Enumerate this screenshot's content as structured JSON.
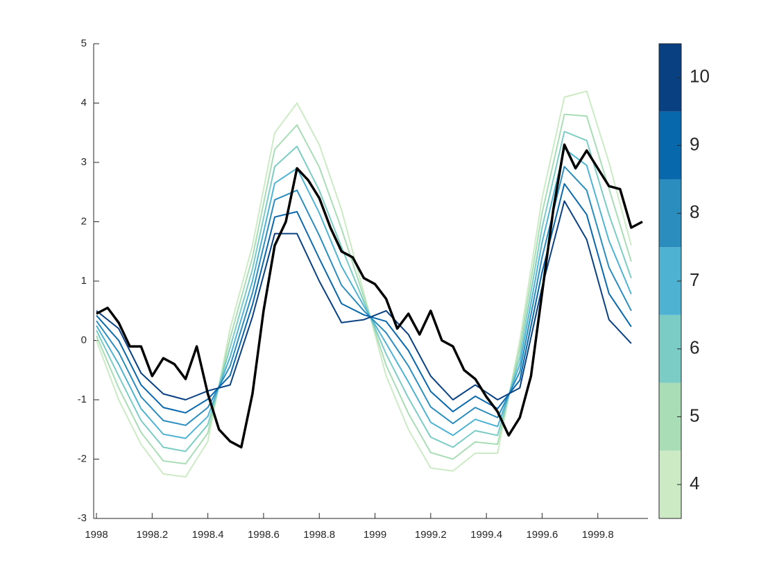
{
  "chart_data": {
    "type": "line",
    "xlim": [
      1997.99,
      1999.98
    ],
    "ylim": [
      -3,
      5
    ],
    "xticks": [
      1998,
      1998.2,
      1998.4,
      1998.6,
      1998.8,
      1999,
      1999.2,
      1999.4,
      1999.6,
      1999.8
    ],
    "yticks": [
      -3,
      -2,
      -1,
      0,
      1,
      2,
      3,
      4,
      5
    ],
    "series": [
      {
        "color": "#ccebc5",
        "x": [
          1998.0,
          1998.08,
          1998.16,
          1998.24,
          1998.32,
          1998.4,
          1998.48,
          1998.56,
          1998.64,
          1998.72,
          1998.8,
          1998.88,
          1998.96,
          1999.04,
          1999.12,
          1999.2,
          1999.28,
          1999.36,
          1999.44,
          1999.52,
          1999.6,
          1999.68,
          1999.76,
          1999.84,
          1999.92
        ],
        "values": [
          0,
          -1.0,
          -1.75,
          -2.25,
          -2.3,
          -1.7,
          0.2,
          1.6,
          3.5,
          4.0,
          3.3,
          2.2,
          0.8,
          -0.6,
          -1.5,
          -2.15,
          -2.2,
          -1.9,
          -1.9,
          0,
          2.4,
          4.1,
          4.2,
          3.0,
          1.6
        ]
      },
      {
        "color": "#a8ddb5",
        "x": [
          1998.0,
          1998.08,
          1998.16,
          1998.24,
          1998.32,
          1998.4,
          1998.48,
          1998.56,
          1998.64,
          1998.72,
          1998.8,
          1998.88,
          1998.96,
          1999.04,
          1999.12,
          1999.2,
          1999.28,
          1999.36,
          1999.44,
          1999.52,
          1999.6,
          1999.68,
          1999.76,
          1999.84,
          1999.92
        ],
        "values": [
          0.08,
          -0.8,
          -1.55,
          -2.03,
          -2.08,
          -1.56,
          0.04,
          1.4,
          3.22,
          3.63,
          2.92,
          1.88,
          0.73,
          -0.42,
          -1.23,
          -1.89,
          -2.0,
          -1.71,
          -1.75,
          -0.13,
          2.15,
          3.81,
          3.78,
          2.56,
          1.33
        ]
      },
      {
        "color": "#7bccc4",
        "x": [
          1998.0,
          1998.08,
          1998.16,
          1998.24,
          1998.32,
          1998.4,
          1998.48,
          1998.56,
          1998.64,
          1998.72,
          1998.8,
          1998.88,
          1998.96,
          1999.04,
          1999.12,
          1999.2,
          1999.28,
          1999.36,
          1999.44,
          1999.52,
          1999.6,
          1999.68,
          1999.76,
          1999.84,
          1999.92
        ],
        "values": [
          0.17,
          -0.6,
          -1.35,
          -1.8,
          -1.87,
          -1.42,
          -0.12,
          1.2,
          2.93,
          3.27,
          2.53,
          1.57,
          0.65,
          -0.23,
          -0.97,
          -1.63,
          -1.8,
          -1.52,
          -1.6,
          -0.27,
          1.9,
          3.52,
          3.37,
          2.12,
          1.05
        ]
      },
      {
        "color": "#4eb3d3",
        "x": [
          1998.0,
          1998.08,
          1998.16,
          1998.24,
          1998.32,
          1998.4,
          1998.48,
          1998.56,
          1998.64,
          1998.72,
          1998.8,
          1998.88,
          1998.96,
          1999.04,
          1999.12,
          1999.2,
          1999.28,
          1999.36,
          1999.44,
          1999.52,
          1999.6,
          1999.68,
          1999.76,
          1999.84,
          1999.92
        ],
        "values": [
          0.25,
          -0.4,
          -1.15,
          -1.58,
          -1.65,
          -1.28,
          -0.28,
          1.0,
          2.65,
          2.9,
          2.15,
          1.25,
          0.58,
          -0.05,
          -0.7,
          -1.38,
          -1.6,
          -1.33,
          -1.45,
          -0.4,
          1.65,
          3.23,
          2.95,
          1.68,
          0.78
        ]
      },
      {
        "color": "#2b8cbe",
        "x": [
          1998.0,
          1998.08,
          1998.16,
          1998.24,
          1998.32,
          1998.4,
          1998.48,
          1998.56,
          1998.64,
          1998.72,
          1998.8,
          1998.88,
          1998.96,
          1999.04,
          1999.12,
          1999.2,
          1999.28,
          1999.36,
          1999.44,
          1999.52,
          1999.6,
          1999.68,
          1999.76,
          1999.84,
          1999.92
        ],
        "values": [
          0.33,
          -0.2,
          -0.95,
          -1.35,
          -1.43,
          -1.13,
          -0.43,
          0.8,
          2.37,
          2.53,
          1.77,
          0.93,
          0.5,
          0.13,
          -0.43,
          -1.12,
          -1.4,
          -1.13,
          -1.3,
          -0.53,
          1.4,
          2.93,
          2.53,
          1.23,
          0.5
        ]
      },
      {
        "color": "#0868ac",
        "x": [
          1998.0,
          1998.08,
          1998.16,
          1998.24,
          1998.32,
          1998.4,
          1998.48,
          1998.56,
          1998.64,
          1998.72,
          1998.8,
          1998.88,
          1998.96,
          1999.04,
          1999.12,
          1999.2,
          1999.28,
          1999.36,
          1999.44,
          1999.52,
          1999.6,
          1999.68,
          1999.76,
          1999.84,
          1999.92
        ],
        "values": [
          0.42,
          0,
          -0.75,
          -1.13,
          -1.22,
          -0.99,
          -0.59,
          0.6,
          2.08,
          2.17,
          1.38,
          0.62,
          0.43,
          0.32,
          -0.17,
          -0.86,
          -1.2,
          -0.94,
          -1.15,
          -0.67,
          1.15,
          2.64,
          2.12,
          0.79,
          0.23
        ]
      },
      {
        "color": "#084081",
        "x": [
          1998.0,
          1998.08,
          1998.16,
          1998.24,
          1998.32,
          1998.4,
          1998.48,
          1998.56,
          1998.64,
          1998.72,
          1998.8,
          1998.88,
          1998.96,
          1999.04,
          1999.12,
          1999.2,
          1999.28,
          1999.36,
          1999.44,
          1999.52,
          1999.6,
          1999.68,
          1999.76,
          1999.84,
          1999.92
        ],
        "values": [
          0.5,
          0.2,
          -0.55,
          -0.9,
          -1.0,
          -0.85,
          -0.75,
          0.4,
          1.8,
          1.8,
          1.0,
          0.3,
          0.35,
          0.5,
          0.1,
          -0.6,
          -1.0,
          -0.75,
          -1.0,
          -0.8,
          0.9,
          2.35,
          1.7,
          0.35,
          -0.05
        ]
      },
      {
        "color": "#000000",
        "x": [
          1998.0,
          1998.04,
          1998.08,
          1998.12,
          1998.16,
          1998.2,
          1998.24,
          1998.28,
          1998.32,
          1998.36,
          1998.4,
          1998.44,
          1998.48,
          1998.52,
          1998.56,
          1998.6,
          1998.64,
          1998.68,
          1998.72,
          1998.76,
          1998.8,
          1998.84,
          1998.88,
          1998.92,
          1998.96,
          1999.0,
          1999.04,
          1999.08,
          1999.12,
          1999.16,
          1999.2,
          1999.24,
          1999.28,
          1999.32,
          1999.36,
          1999.4,
          1999.44,
          1999.48,
          1999.52,
          1999.56,
          1999.6,
          1999.64,
          1999.68,
          1999.72,
          1999.76,
          1999.8,
          1999.84,
          1999.88,
          1999.92,
          1999.96
        ],
        "values": [
          0.45,
          0.55,
          0.3,
          -0.1,
          -0.1,
          -0.6,
          -0.3,
          -0.4,
          -0.65,
          -0.1,
          -0.9,
          -1.5,
          -1.7,
          -1.8,
          -0.9,
          0.5,
          1.6,
          2.0,
          2.9,
          2.7,
          2.4,
          1.9,
          1.5,
          1.4,
          1.05,
          0.95,
          0.7,
          0.2,
          0.45,
          0.1,
          0.5,
          0.0,
          -0.1,
          -0.5,
          -0.65,
          -0.95,
          -1.2,
          -1.6,
          -1.3,
          -0.6,
          0.8,
          2.2,
          3.3,
          2.9,
          3.2,
          2.9,
          2.6,
          2.55,
          1.9,
          2.0
        ]
      }
    ],
    "colorbar": {
      "lim": [
        3.5,
        10.5
      ],
      "ticks": [
        4,
        5,
        6,
        7,
        8,
        9,
        10
      ],
      "colors": [
        "#ccebc5",
        "#a8ddb5",
        "#7bccc4",
        "#4eb3d3",
        "#2b8cbe",
        "#0868ac",
        "#084081"
      ]
    }
  }
}
